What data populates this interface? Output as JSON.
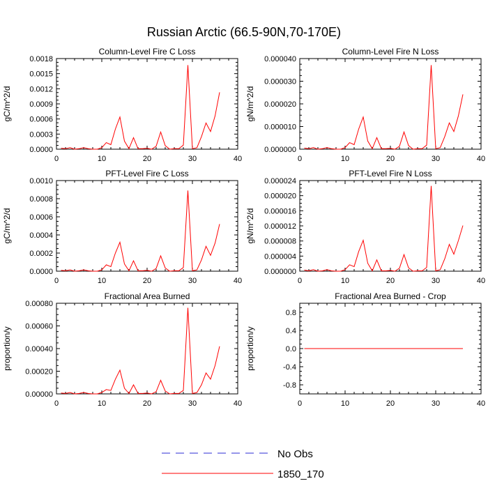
{
  "figure_title": "Russian Arctic (66.5-90N,70-170E)",
  "legend": {
    "entries": [
      {
        "label": "No Obs",
        "style": "dashed",
        "color": "#2b2bd6"
      },
      {
        "label": "1850_170",
        "style": "solid",
        "color": "#ff0000"
      }
    ]
  },
  "chart_data": [
    {
      "type": "line",
      "title": "Column-Level Fire C Loss",
      "xlabel": "",
      "ylabel": "gC/m^2/d",
      "xlim": [
        0,
        40
      ],
      "ylim": [
        0,
        0.0018
      ],
      "xticks": [
        "0",
        "10",
        "20",
        "30",
        "40"
      ],
      "yticks": [
        "0.0000",
        "0.0003",
        "0.0006",
        "0.0009",
        "0.0012",
        "0.0015",
        "0.0018"
      ],
      "series": [
        {
          "name": "1850_170",
          "color": "#ff0000",
          "x": [
            1,
            2,
            3,
            4,
            5,
            6,
            7,
            8,
            9,
            10,
            11,
            12,
            13,
            14,
            15,
            16,
            17,
            18,
            19,
            20,
            21,
            22,
            23,
            24,
            25,
            26,
            27,
            28,
            29,
            30,
            31,
            32,
            33,
            34,
            35,
            36
          ],
          "values": [
            2e-05,
            1e-05,
            3e-05,
            0.0,
            1e-05,
            3e-05,
            1e-05,
            0.0,
            0.0,
            3e-05,
            0.00013,
            9e-05,
            0.0004,
            0.00064,
            0.00016,
            1e-05,
            0.00023,
            1e-05,
            1e-05,
            2e-05,
            0.0,
            6e-05,
            0.00034,
            7e-05,
            0.0,
            1e-05,
            1e-05,
            8e-05,
            0.00167,
            1e-05,
            3e-05,
            0.00025,
            0.00052,
            0.00035,
            0.00066,
            0.00113
          ]
        }
      ]
    },
    {
      "type": "line",
      "title": "Column-Level Fire N Loss",
      "xlabel": "",
      "ylabel": "gN/m^2/d",
      "xlim": [
        0,
        40
      ],
      "ylim": [
        0,
        4e-05
      ],
      "xticks": [
        "0",
        "10",
        "20",
        "30",
        "40"
      ],
      "yticks": [
        "0.000000",
        "0.000010",
        "0.000020",
        "0.000030",
        "0.000040"
      ],
      "series": [
        {
          "name": "1850_170",
          "color": "#ff0000",
          "x": [
            1,
            2,
            3,
            4,
            5,
            6,
            7,
            8,
            9,
            10,
            11,
            12,
            13,
            14,
            15,
            16,
            17,
            18,
            19,
            20,
            21,
            22,
            23,
            24,
            25,
            26,
            27,
            28,
            29,
            30,
            31,
            32,
            33,
            34,
            35,
            36
          ],
          "values": [
            5e-07,
            2e-07,
            7e-07,
            0.0,
            2e-07,
            7e-07,
            2e-07,
            0.0,
            0.0,
            7e-07,
            2.9e-06,
            2e-06,
            8.9e-06,
            1.42e-05,
            3.6e-06,
            2e-07,
            5.1e-06,
            2e-07,
            2e-07,
            4e-07,
            0.0,
            1.3e-06,
            7.6e-06,
            1.6e-06,
            0.0,
            2e-07,
            2e-07,
            1.8e-06,
            3.71e-05,
            2e-07,
            7e-07,
            5.6e-06,
            1.16e-05,
            7.8e-06,
            1.47e-05,
            2.42e-05
          ]
        }
      ]
    },
    {
      "type": "line",
      "title": "PFT-Level Fire C Loss",
      "xlabel": "",
      "ylabel": "gC/m^2/d",
      "xlim": [
        0,
        40
      ],
      "ylim": [
        0,
        0.001
      ],
      "xticks": [
        "0",
        "10",
        "20",
        "30",
        "40"
      ],
      "yticks": [
        "0.0000",
        "0.0002",
        "0.0004",
        "0.0006",
        "0.0008",
        "0.0010"
      ],
      "series": [
        {
          "name": "1850_170",
          "color": "#ff0000",
          "x": [
            1,
            2,
            3,
            4,
            5,
            6,
            7,
            8,
            9,
            10,
            11,
            12,
            13,
            14,
            15,
            16,
            17,
            18,
            19,
            20,
            21,
            22,
            23,
            24,
            25,
            26,
            27,
            28,
            29,
            30,
            31,
            32,
            33,
            34,
            35,
            36
          ],
          "values": [
            1e-05,
            5e-06,
            1.5e-05,
            0.0,
            5e-06,
            1.5e-05,
            5e-06,
            0.0,
            0.0,
            1.5e-05,
            7e-05,
            5e-05,
            0.0002,
            0.00032,
            8e-05,
            5e-06,
            0.000115,
            5e-06,
            5e-06,
            1e-05,
            0.0,
            3e-05,
            0.00017,
            3.5e-05,
            0.0,
            5e-06,
            5e-06,
            4e-05,
            0.00089,
            5e-06,
            1.5e-05,
            0.000125,
            0.000275,
            0.000175,
            0.00031,
            0.00052
          ]
        }
      ]
    },
    {
      "type": "line",
      "title": "PFT-Level Fire N Loss",
      "xlabel": "",
      "ylabel": "gN/m^2/d",
      "xlim": [
        0,
        40
      ],
      "ylim": [
        0,
        2.4e-05
      ],
      "xticks": [
        "0",
        "10",
        "20",
        "30",
        "40"
      ],
      "yticks": [
        "0.000000",
        "0.000004",
        "0.000008",
        "0.000012",
        "0.000016",
        "0.000020",
        "0.000024"
      ],
      "series": [
        {
          "name": "1850_170",
          "color": "#ff0000",
          "x": [
            1,
            2,
            3,
            4,
            5,
            6,
            7,
            8,
            9,
            10,
            11,
            12,
            13,
            14,
            15,
            16,
            17,
            18,
            19,
            20,
            21,
            22,
            23,
            24,
            25,
            26,
            27,
            28,
            29,
            30,
            31,
            32,
            33,
            34,
            35,
            36
          ],
          "values": [
            3e-07,
            1e-07,
            4e-07,
            0.0,
            1e-07,
            4e-07,
            1e-07,
            0.0,
            0.0,
            4e-07,
            1.7e-06,
            1.2e-06,
            5.2e-06,
            8.2e-06,
            2.1e-06,
            1e-07,
            3e-06,
            1e-07,
            1e-07,
            2e-07,
            0.0,
            8e-07,
            4.4e-06,
            9e-07,
            0.0,
            1e-07,
            1e-07,
            1e-06,
            2.26e-05,
            1e-07,
            4e-07,
            3.3e-06,
            7.1e-06,
            4.5e-06,
            8.1e-06,
            1.21e-05
          ]
        }
      ]
    },
    {
      "type": "line",
      "title": "Fractional Area Burned",
      "xlabel": "",
      "ylabel": "proportion/y",
      "xlim": [
        0,
        40
      ],
      "ylim": [
        0,
        0.0008
      ],
      "xticks": [
        "0",
        "10",
        "20",
        "30",
        "40"
      ],
      "yticks": [
        "0.00000",
        "0.00020",
        "0.00040",
        "0.00060",
        "0.00080"
      ],
      "series": [
        {
          "name": "1850_170",
          "color": "#ff0000",
          "x": [
            1,
            2,
            3,
            4,
            5,
            6,
            7,
            8,
            9,
            10,
            11,
            12,
            13,
            14,
            15,
            16,
            17,
            18,
            19,
            20,
            21,
            22,
            23,
            24,
            25,
            26,
            27,
            28,
            29,
            30,
            31,
            32,
            33,
            34,
            35,
            36
          ],
          "values": [
            8e-06,
            4e-06,
            1.2e-05,
            0.0,
            4e-06,
            1.2e-05,
            4e-06,
            0.0,
            0.0,
            1.2e-05,
            3.8e-05,
            3e-05,
            0.00013,
            0.00021,
            5e-05,
            4e-06,
            8e-05,
            4e-06,
            4e-06,
            8e-06,
            0.0,
            2e-05,
            0.00012,
            2.5e-05,
            0.0,
            4e-06,
            4e-06,
            3e-05,
            0.00076,
            4e-06,
            1.2e-05,
            8e-05,
            0.000185,
            0.00013,
            0.00025,
            0.00042
          ]
        }
      ]
    },
    {
      "type": "line",
      "title": "Fractional Area Burned - Crop",
      "xlabel": "",
      "ylabel": "proportion/y",
      "xlim": [
        0,
        40
      ],
      "ylim": [
        -1.0,
        1.0
      ],
      "xticks": [
        "0",
        "10",
        "20",
        "30",
        "40"
      ],
      "yticks": [
        "-0.8",
        "-0.4",
        "0.0",
        "0.4",
        "0.8"
      ],
      "series": [
        {
          "name": "1850_170",
          "color": "#ff0000",
          "x": [
            1,
            36
          ],
          "values": [
            0.0,
            0.0
          ]
        }
      ]
    }
  ]
}
